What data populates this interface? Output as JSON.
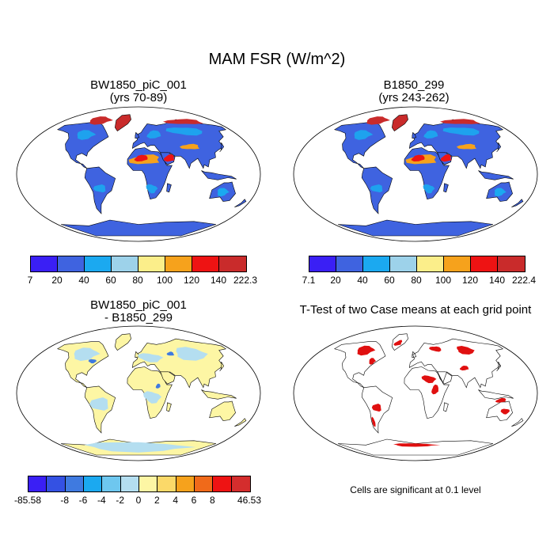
{
  "title": "MAM FSR (W/m^2)",
  "panels": [
    {
      "id": "case1",
      "title_line1": "BW1850_piC_001",
      "title_line2": "(yrs 70-89)"
    },
    {
      "id": "case2",
      "title_line1": "B1850_299",
      "title_line2": "(yrs 243-262)"
    },
    {
      "id": "diff",
      "title_line1": "BW1850_piC_001",
      "title_line2": "- B1850_299"
    },
    {
      "id": "ttest",
      "title_line1": "T-Test of two Case means at each grid point",
      "title_line2": ""
    }
  ],
  "colorbars": {
    "case1": {
      "colors": [
        "#3a1ff5",
        "#3f63e0",
        "#1ba9f0",
        "#9dd2ea",
        "#fbee8a",
        "#f6a21c",
        "#ee1313",
        "#c92b2b"
      ],
      "labels": [
        "7",
        "20",
        "40",
        "60",
        "80",
        "100",
        "120",
        "140",
        "222.3"
      ]
    },
    "case2": {
      "colors": [
        "#3a1ff5",
        "#3f63e0",
        "#1ba9f0",
        "#9dd2ea",
        "#fbee8a",
        "#f6a21c",
        "#ee1313",
        "#c92b2b"
      ],
      "labels": [
        "7.1",
        "20",
        "40",
        "60",
        "80",
        "100",
        "120",
        "140",
        "222.4"
      ]
    },
    "diff": {
      "colors": [
        "#3a1ff5",
        "#3451e3",
        "#3f7ae0",
        "#1ba9f0",
        "#6ec7ef",
        "#b4def0",
        "#fdf6a4",
        "#fbd969",
        "#f6a21c",
        "#f06a1a",
        "#ee1313",
        "#d42d2d"
      ],
      "labels": [
        "-85.58",
        "",
        "-8",
        "-6",
        "-4",
        "-2",
        "0",
        "2",
        "4",
        "6",
        "8",
        "",
        "46.53"
      ]
    }
  },
  "note": "Cells are significant at 0.1 level",
  "map_colors": {
    "ocean": "#ffffff",
    "land_low": "#3f63e0",
    "land_mid": "#1ba9f0",
    "desert": "#f6a21c",
    "desert_hot": "#ee1313",
    "ice": "#c92b2b",
    "antarctic": "#3f63e0",
    "diff_base": "#fdf6a4",
    "diff_light": "#b4def0",
    "diff_neg": "#3f7ae0",
    "sig": "#e01010"
  }
}
